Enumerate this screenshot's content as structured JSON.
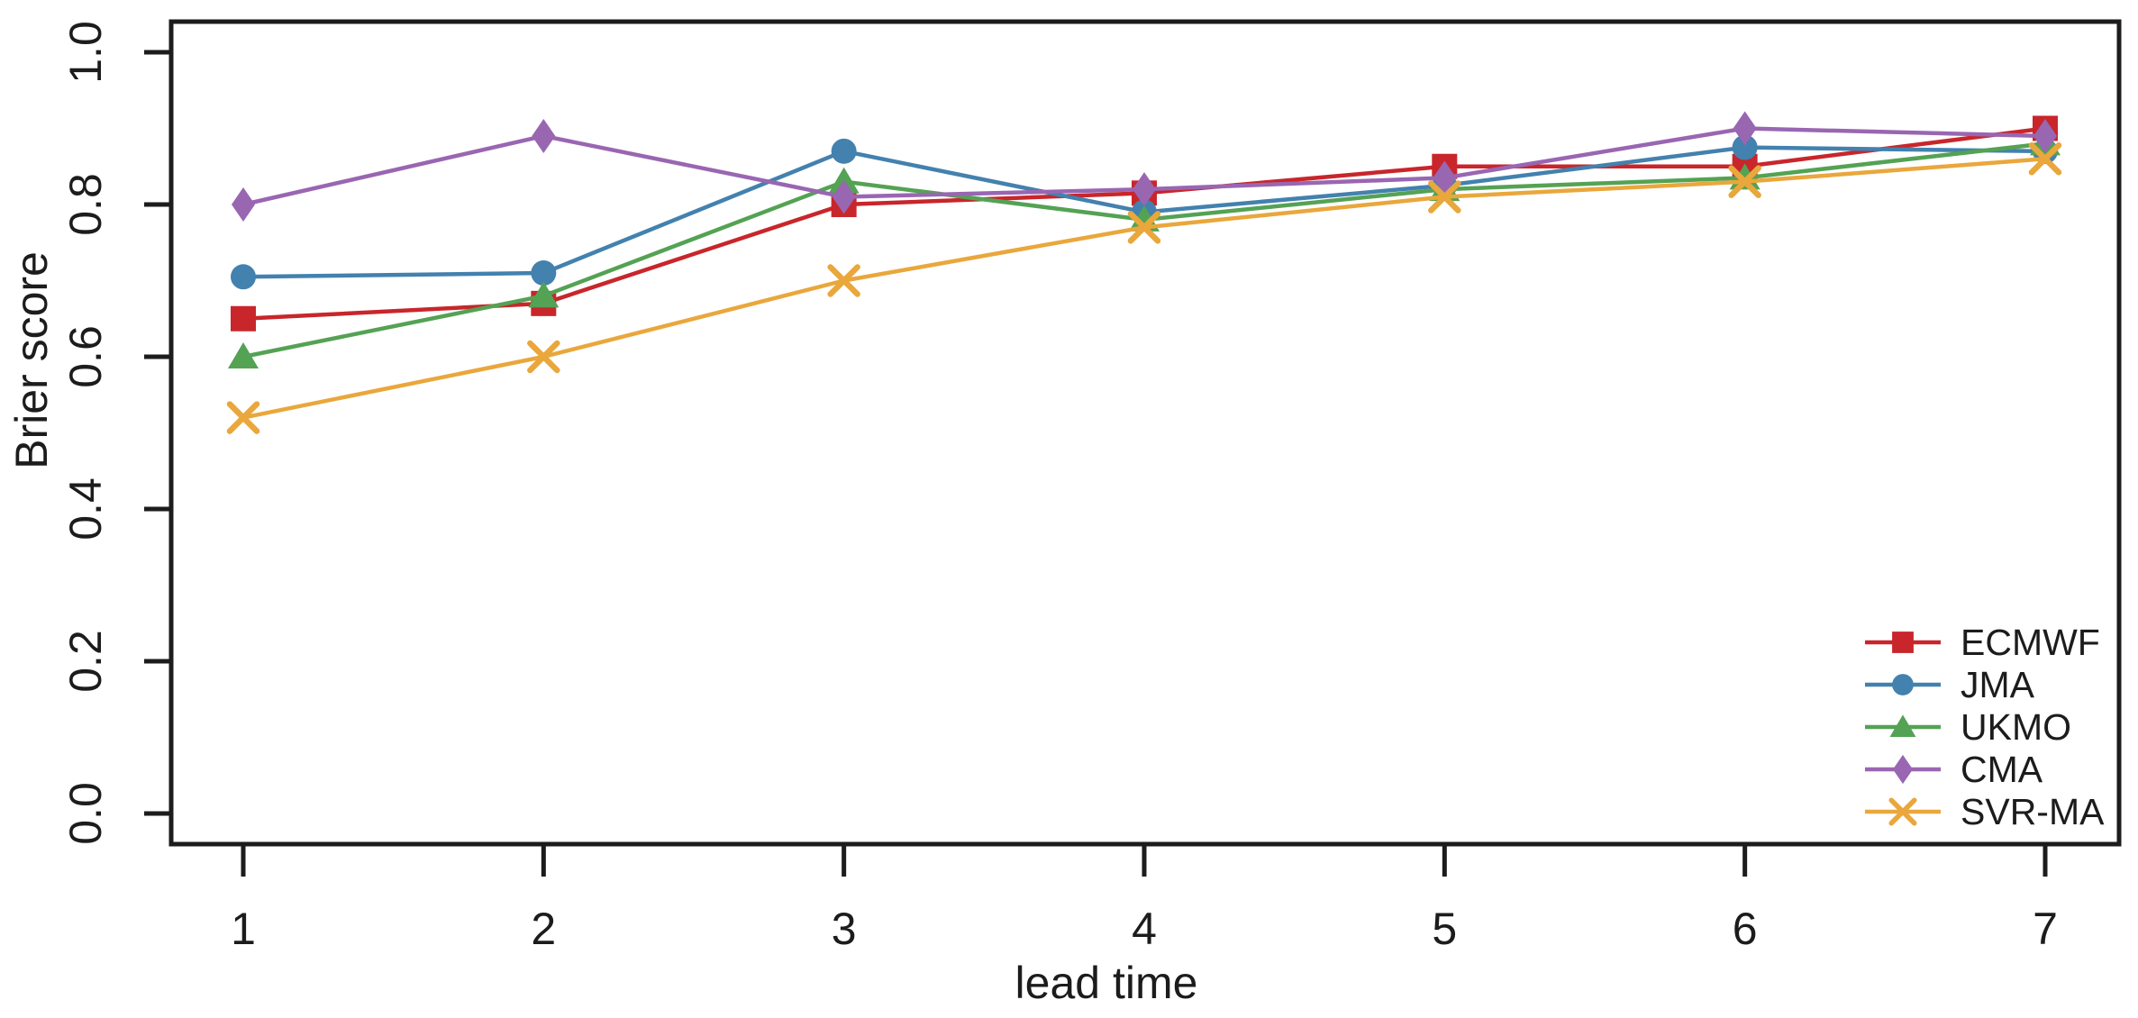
{
  "chart_data": {
    "type": "line",
    "title": "",
    "xlabel": "lead time",
    "ylabel": "Brier score",
    "x": [
      1,
      2,
      3,
      4,
      5,
      6,
      7
    ],
    "x_tick_labels": [
      "1",
      "2",
      "3",
      "4",
      "5",
      "6",
      "7"
    ],
    "y_ticks": [
      0.0,
      0.2,
      0.4,
      0.6,
      0.8,
      1.0
    ],
    "y_tick_labels": [
      "0.0",
      "0.2",
      "0.4",
      "0.6",
      "0.8",
      "1.0"
    ],
    "xlim": [
      0.76,
      7.24
    ],
    "ylim": [
      -0.04,
      1.04
    ],
    "grid": false,
    "legend_position": "right-inside",
    "axis_color": "#1c1c1c",
    "background": "#ffffff",
    "series": [
      {
        "name": "ECMWF",
        "color": "#c8262b",
        "marker": "square",
        "values": [
          0.65,
          0.67,
          0.8,
          0.815,
          0.85,
          0.85,
          0.9
        ]
      },
      {
        "name": "JMA",
        "color": "#4381ae",
        "marker": "circle",
        "values": [
          0.705,
          0.71,
          0.87,
          0.79,
          0.825,
          0.875,
          0.87
        ]
      },
      {
        "name": "UKMO",
        "color": "#54a254",
        "marker": "triangle",
        "values": [
          0.6,
          0.68,
          0.83,
          0.78,
          0.82,
          0.835,
          0.88
        ]
      },
      {
        "name": "CMA",
        "color": "#9966b2",
        "marker": "diamond",
        "values": [
          0.8,
          0.89,
          0.81,
          0.82,
          0.835,
          0.9,
          0.89
        ]
      },
      {
        "name": "SVR-MA",
        "color": "#e9a73c",
        "marker": "x",
        "values": [
          0.52,
          0.6,
          0.7,
          0.77,
          0.81,
          0.83,
          0.86
        ]
      }
    ]
  }
}
